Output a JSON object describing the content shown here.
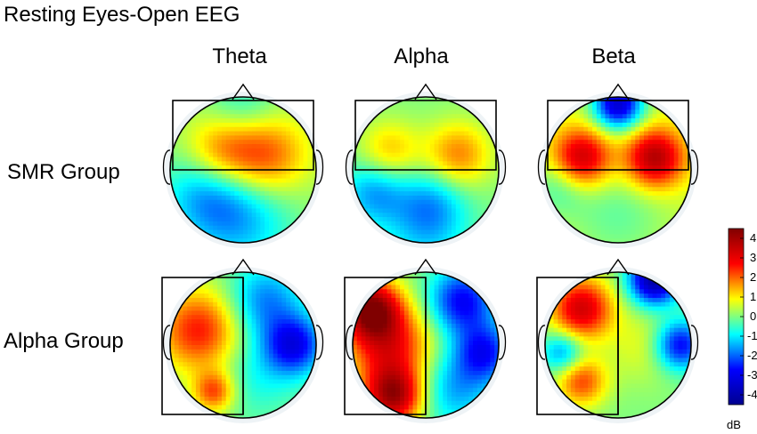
{
  "title": "Resting Eyes-Open EEG",
  "columns": [
    "Theta",
    "Alpha",
    "Beta"
  ],
  "rows": [
    "SMR Group",
    "Alpha Group"
  ],
  "colorbar": {
    "unit": "dB",
    "min": -4.5,
    "max": 4.5,
    "ticks": [
      "4",
      "3",
      "2",
      "1",
      "0",
      "-1",
      "-2",
      "-3",
      "-4"
    ],
    "colors": [
      "#00008f",
      "#0000ff",
      "#00ffff",
      "#ffff00",
      "#ff0000",
      "#800000"
    ]
  },
  "maps": [
    {
      "row": "SMR Group",
      "column": "Theta",
      "grid": "horizontal",
      "base": 0.2,
      "blobs": [
        {
          "u": 0.35,
          "v": 0.62,
          "value": 1.8,
          "spread": 0.18
        },
        {
          "u": 0.65,
          "v": 0.6,
          "value": 2.0,
          "spread": 0.2
        },
        {
          "u": 0.25,
          "v": 0.35,
          "value": -1.6,
          "spread": 0.22
        },
        {
          "u": 0.5,
          "v": 0.15,
          "value": -1.4,
          "spread": 0.25
        },
        {
          "u": 0.5,
          "v": 0.92,
          "value": -1.0,
          "spread": 0.18
        }
      ]
    },
    {
      "row": "SMR Group",
      "column": "Alpha",
      "grid": "horizontal",
      "base": 0.0,
      "blobs": [
        {
          "u": 0.25,
          "v": 0.62,
          "value": 1.4,
          "spread": 0.15
        },
        {
          "u": 0.72,
          "v": 0.6,
          "value": 1.8,
          "spread": 0.16
        },
        {
          "u": 0.15,
          "v": 0.35,
          "value": -1.6,
          "spread": 0.16
        },
        {
          "u": 0.55,
          "v": 0.3,
          "value": -1.0,
          "spread": 0.16
        },
        {
          "u": 0.5,
          "v": 0.1,
          "value": -1.2,
          "spread": 0.2
        }
      ]
    },
    {
      "row": "SMR Group",
      "column": "Beta",
      "grid": "horizontal",
      "base": 0.6,
      "blobs": [
        {
          "u": 0.25,
          "v": 0.58,
          "value": 3.0,
          "spread": 0.14
        },
        {
          "u": 0.75,
          "v": 0.58,
          "value": 3.3,
          "spread": 0.14
        },
        {
          "u": 0.5,
          "v": 0.95,
          "value": -4.0,
          "spread": 0.12
        },
        {
          "u": 0.5,
          "v": 0.2,
          "value": -0.8,
          "spread": 0.25
        },
        {
          "u": 0.1,
          "v": 0.4,
          "value": -1.0,
          "spread": 0.14
        }
      ]
    },
    {
      "row": "Alpha Group",
      "column": "Theta",
      "grid": "vertical",
      "base": 0.0,
      "blobs": [
        {
          "u": 0.2,
          "v": 0.6,
          "value": 2.6,
          "spread": 0.2
        },
        {
          "u": 0.3,
          "v": 0.18,
          "value": 2.2,
          "spread": 0.1
        },
        {
          "u": 0.85,
          "v": 0.5,
          "value": -2.8,
          "spread": 0.14
        },
        {
          "u": 0.65,
          "v": 0.8,
          "value": -1.8,
          "spread": 0.18
        },
        {
          "u": 0.6,
          "v": 0.3,
          "value": -0.8,
          "spread": 0.2
        }
      ]
    },
    {
      "row": "Alpha Group",
      "column": "Alpha",
      "grid": "vertical",
      "base": 0.0,
      "blobs": [
        {
          "u": 0.12,
          "v": 0.75,
          "value": 4.0,
          "spread": 0.14
        },
        {
          "u": 0.28,
          "v": 0.15,
          "value": 3.8,
          "spread": 0.14
        },
        {
          "u": 0.25,
          "v": 0.5,
          "value": 2.8,
          "spread": 0.2
        },
        {
          "u": 0.75,
          "v": 0.8,
          "value": -2.8,
          "spread": 0.16
        },
        {
          "u": 0.9,
          "v": 0.45,
          "value": -2.5,
          "spread": 0.14
        },
        {
          "u": 0.7,
          "v": 0.2,
          "value": -1.5,
          "spread": 0.18
        }
      ]
    },
    {
      "row": "Alpha Group",
      "column": "Beta",
      "grid": "vertical",
      "base": 0.0,
      "blobs": [
        {
          "u": 0.25,
          "v": 0.75,
          "value": 3.3,
          "spread": 0.15
        },
        {
          "u": 0.25,
          "v": 0.25,
          "value": 2.2,
          "spread": 0.12
        },
        {
          "u": 0.75,
          "v": 0.95,
          "value": -4.2,
          "spread": 0.12
        },
        {
          "u": 0.92,
          "v": 0.5,
          "value": -3.0,
          "spread": 0.12
        },
        {
          "u": 0.12,
          "v": 0.45,
          "value": -1.8,
          "spread": 0.1
        },
        {
          "u": 0.7,
          "v": 0.5,
          "value": 0.8,
          "spread": 0.18
        }
      ]
    }
  ]
}
